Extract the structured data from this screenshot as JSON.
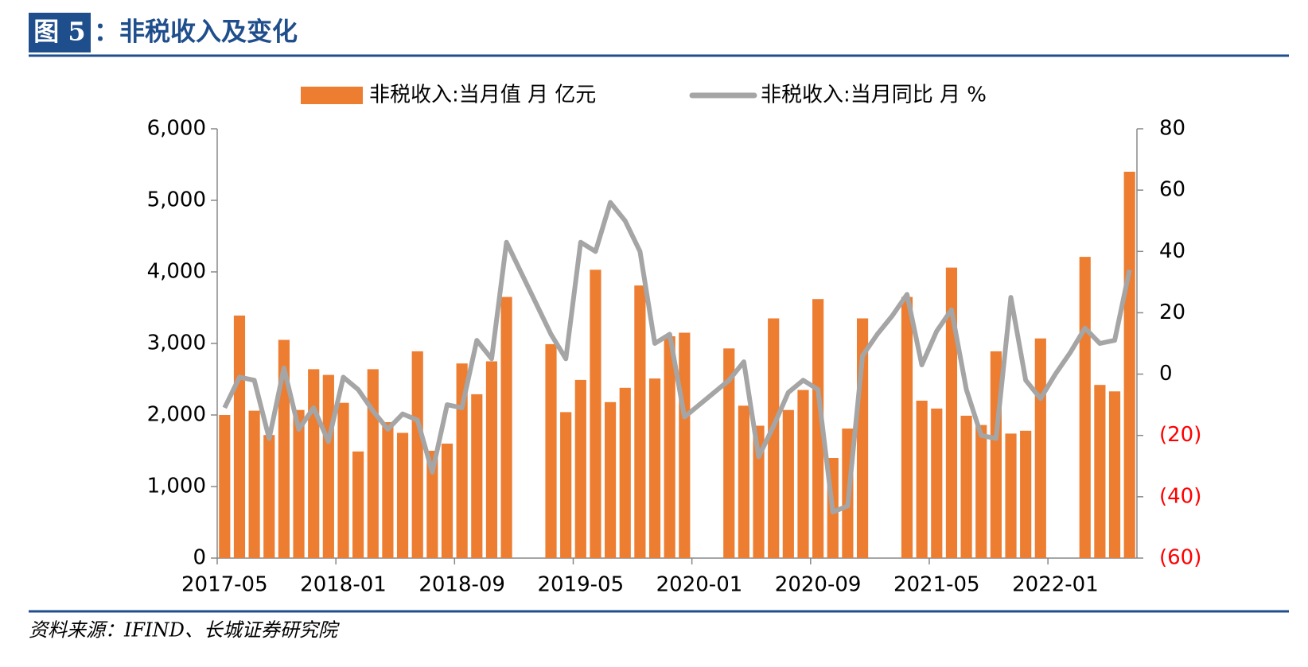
{
  "header": {
    "figure_label": "图 5",
    "title": "：非税收入及变化"
  },
  "chart_data": {
    "type": "bar_line",
    "categories": [
      "2017-05",
      null,
      null,
      null,
      null,
      null,
      null,
      null,
      "2018-01",
      null,
      null,
      null,
      null,
      null,
      null,
      null,
      "2018-09",
      null,
      null,
      null,
      null,
      null,
      null,
      null,
      "2019-05",
      null,
      null,
      null,
      null,
      null,
      null,
      null,
      "2020-01",
      null,
      null,
      null,
      null,
      null,
      null,
      null,
      "2020-09",
      null,
      null,
      null,
      null,
      null,
      null,
      null,
      "2021-05",
      null,
      null,
      null,
      null,
      null,
      null,
      null,
      "2022-01",
      null,
      null,
      null,
      null,
      null
    ],
    "series": [
      {
        "name": "非税收入:当月值 月 亿元",
        "type": "bar",
        "color": "#ED7D31",
        "values": [
          2000,
          3390,
          2060,
          1720,
          3050,
          2070,
          2640,
          2560,
          2170,
          1490,
          2640,
          1900,
          1750,
          2890,
          1500,
          1600,
          2720,
          2290,
          2750,
          3650,
          null,
          null,
          2990,
          2040,
          2490,
          4030,
          2180,
          2380,
          3810,
          2510,
          3100,
          3150,
          null,
          null,
          2930,
          2130,
          1850,
          3350,
          2070,
          2350,
          3620,
          1400,
          1810,
          3350,
          null,
          null,
          3650,
          2200,
          2090,
          4060,
          1990,
          1860,
          2890,
          1740,
          1780,
          3070,
          null,
          null,
          4210,
          2420,
          2330,
          5400
        ]
      },
      {
        "name": "非税收入:当月同比 月 %",
        "type": "line",
        "axis": "y2",
        "color": "#A5A5A5",
        "values": [
          -11,
          -1,
          -2,
          -21,
          2,
          -18,
          -11,
          -22,
          -1,
          -5,
          -12,
          -18,
          -13,
          -15,
          -32,
          -10,
          -11,
          11,
          5,
          43,
          33,
          23,
          13,
          5,
          43,
          40,
          56,
          50,
          40,
          10,
          13,
          -14,
          -10,
          -6,
          -2,
          4,
          -27,
          -17,
          -6,
          -2,
          -5,
          -45,
          -43,
          6,
          13,
          19,
          26,
          3,
          14,
          21,
          -5,
          -20,
          -21,
          25,
          -2,
          -8,
          0,
          7,
          15,
          10,
          11,
          34
        ]
      }
    ],
    "ylim": [
      0,
      6000
    ],
    "yticks": [
      0,
      {
        "value": 1000,
        "label": "1,000"
      },
      {
        "value": 2000,
        "label": "2,000"
      },
      {
        "value": 3000,
        "label": "3,000"
      },
      {
        "value": 4000,
        "label": "4,000"
      },
      {
        "value": 5000,
        "label": "5,000"
      },
      {
        "value": 6000,
        "label": "6,000"
      }
    ],
    "y2lim": [
      -60,
      80
    ],
    "y2ticks": [
      {
        "value": -60,
        "label": "(60)"
      },
      {
        "value": -40,
        "label": "(40)"
      },
      {
        "value": -20,
        "label": "(20)"
      },
      0,
      20,
      40,
      60,
      80
    ],
    "y2_negative_label_color": "#FF0000",
    "legend": "top"
  },
  "footer": {
    "source": "资料来源：IFIND、长城证券研究院"
  }
}
